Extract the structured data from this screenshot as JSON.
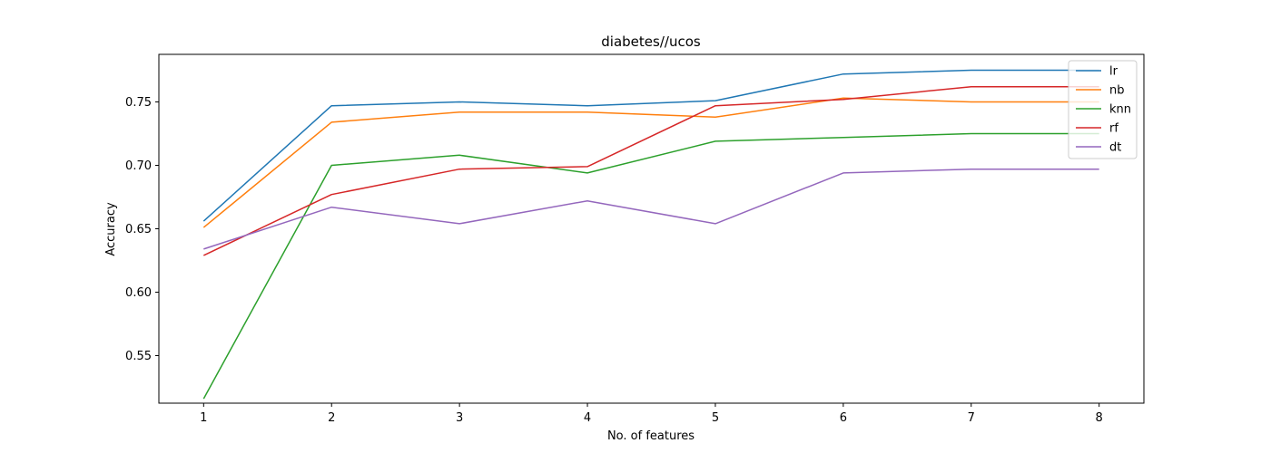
{
  "chart_data": {
    "type": "line",
    "title": "diabetes//ucos",
    "xlabel": "No. of features",
    "ylabel": "Accuracy",
    "x": [
      1,
      2,
      3,
      4,
      5,
      6,
      7,
      8
    ],
    "xlim": [
      0.65,
      8.35
    ],
    "ylim": [
      0.5125,
      0.7875
    ],
    "yticks": [
      0.55,
      0.6,
      0.65,
      0.7,
      0.75
    ],
    "ytick_labels": [
      "0.55",
      "0.60",
      "0.65",
      "0.70",
      "0.75"
    ],
    "xtick_labels": [
      "1",
      "2",
      "3",
      "4",
      "5",
      "6",
      "7",
      "8"
    ],
    "grid": false,
    "legend_position": "top-right",
    "series": [
      {
        "name": "lr",
        "color": "#1f77b4",
        "values": [
          0.656,
          0.747,
          0.75,
          0.747,
          0.751,
          0.772,
          0.775,
          0.775
        ]
      },
      {
        "name": "nb",
        "color": "#ff7f0e",
        "values": [
          0.651,
          0.734,
          0.742,
          0.742,
          0.738,
          0.753,
          0.75,
          0.75
        ]
      },
      {
        "name": "knn",
        "color": "#2ca02c",
        "values": [
          0.516,
          0.7,
          0.708,
          0.694,
          0.719,
          0.722,
          0.725,
          0.725
        ]
      },
      {
        "name": "rf",
        "color": "#d62728",
        "values": [
          0.629,
          0.677,
          0.697,
          0.699,
          0.747,
          0.752,
          0.762,
          0.762
        ]
      },
      {
        "name": "dt",
        "color": "#9467bd",
        "values": [
          0.634,
          0.667,
          0.654,
          0.672,
          0.654,
          0.694,
          0.697,
          0.697
        ]
      }
    ]
  }
}
